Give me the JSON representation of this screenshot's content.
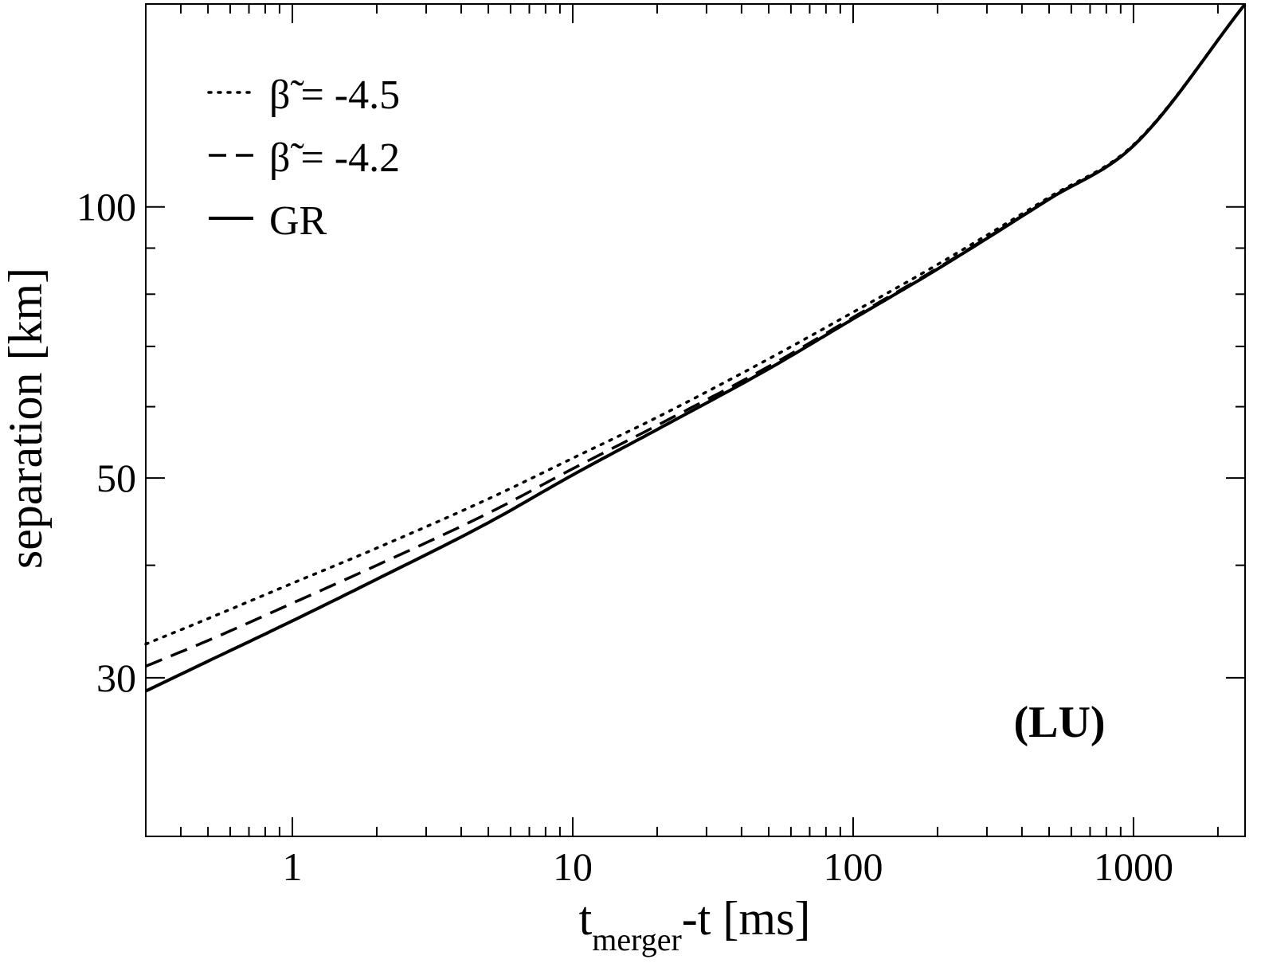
{
  "chart_data": {
    "type": "line",
    "xscale": "log",
    "yscale": "log",
    "xlim": [
      0.3,
      2500
    ],
    "ylim": [
      20,
      168
    ],
    "xlabel": {
      "main": "t",
      "sub": "merger",
      "rest": "-t  [ms]"
    },
    "ylabel": "separation [km]",
    "x_ticks": [
      {
        "value": 1,
        "label": "1"
      },
      {
        "value": 10,
        "label": "10"
      },
      {
        "value": 100,
        "label": "100"
      },
      {
        "value": 1000,
        "label": "1000"
      }
    ],
    "y_ticks": [
      {
        "value": 30,
        "label": "30"
      },
      {
        "value": 50,
        "label": "50"
      },
      {
        "value": 100,
        "label": "100"
      }
    ],
    "y_minor_ticks": [
      40,
      60,
      70,
      80,
      90
    ],
    "annotation": "(LU)",
    "legend_position": "top-left",
    "series": [
      {
        "name": "β̃ = -4.5",
        "symbol": "β̃",
        "value_text": " = -4.5",
        "style": "dotted",
        "x": [
          0.3,
          0.5,
          1,
          2,
          5,
          10,
          20,
          50,
          100,
          200,
          500,
          1000,
          2500
        ],
        "y": [
          32.7,
          34.9,
          38.2,
          41.8,
          47.4,
          52.6,
          58.4,
          67.8,
          76.4,
          86.3,
          102.5,
          117.2,
          168
        ]
      },
      {
        "name": "β̃ = -4.2",
        "symbol": "β̃",
        "value_text": " = -4.2",
        "style": "dashed",
        "x": [
          0.3,
          0.5,
          1,
          2,
          5,
          10,
          20,
          50,
          100,
          200,
          500,
          1000,
          2500
        ],
        "y": [
          30.9,
          33.0,
          36.3,
          40.0,
          45.7,
          51.2,
          57.2,
          66.5,
          75.4,
          85.5,
          102.1,
          117.0,
          168
        ]
      },
      {
        "name": "GR",
        "symbol": "",
        "value_text": "GR",
        "style": "solid",
        "x": [
          0.3,
          0.5,
          1,
          2,
          5,
          10,
          20,
          50,
          100,
          200,
          500,
          1000,
          2500
        ],
        "y": [
          29.0,
          31.3,
          34.7,
          38.6,
          44.6,
          50.4,
          56.6,
          66.1,
          75.1,
          85.3,
          102.0,
          116.9,
          168
        ]
      }
    ]
  }
}
